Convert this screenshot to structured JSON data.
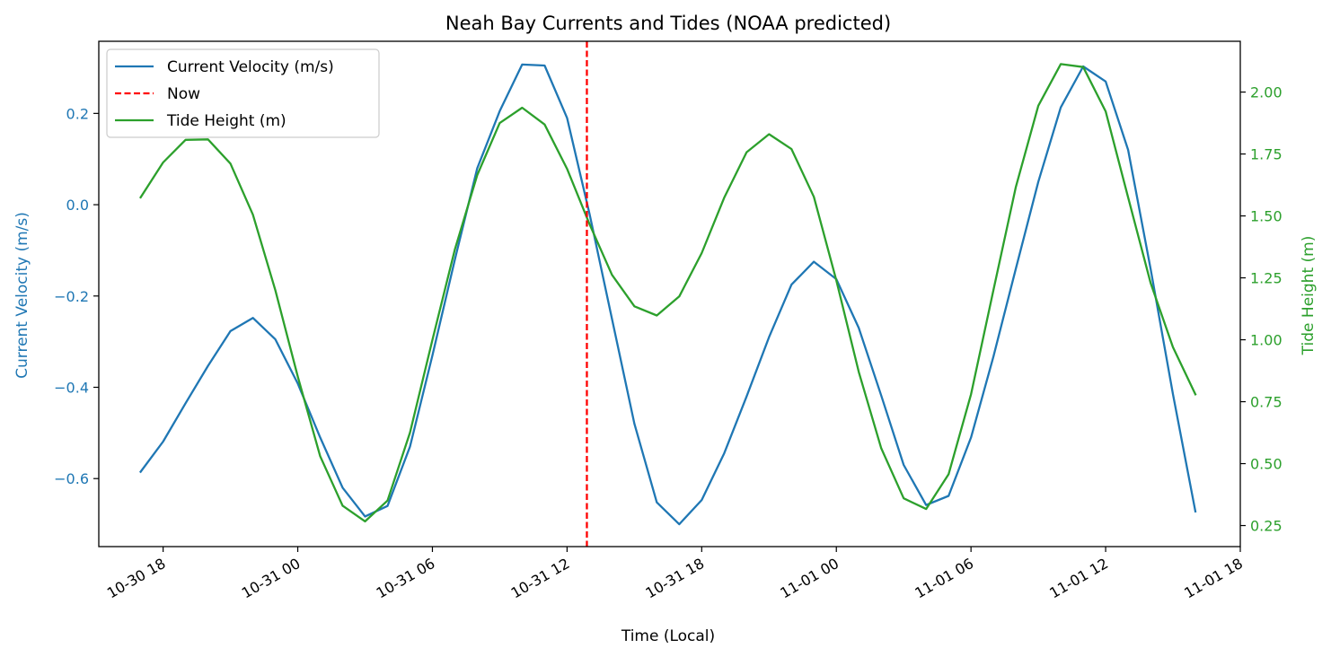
{
  "chart_data": {
    "type": "line",
    "title": "Neah Bay Currents and Tides (NOAA predicted)",
    "xlabel": "Time (Local)",
    "ylabel_left": "Current Velocity (m/s)",
    "ylabel_right": "Tide Height (m)",
    "x_unit": "hours",
    "x_ticks": [
      {
        "t": "2024-10-30T18:00",
        "label": "10-30 18"
      },
      {
        "t": "2024-10-31T00:00",
        "label": "10-31 00"
      },
      {
        "t": "2024-10-31T06:00",
        "label": "10-31 06"
      },
      {
        "t": "2024-10-31T12:00",
        "label": "10-31 12"
      },
      {
        "t": "2024-10-31T18:00",
        "label": "10-31 18"
      },
      {
        "t": "2024-11-01T00:00",
        "label": "11-01 00"
      },
      {
        "t": "2024-11-01T06:00",
        "label": "11-01 06"
      },
      {
        "t": "2024-11-01T12:00",
        "label": "11-01 12"
      },
      {
        "t": "2024-11-01T18:00",
        "label": "11-01 18"
      }
    ],
    "xlim": [
      "2024-10-30T15:08",
      "2024-11-01T18:00"
    ],
    "ylim_left": [
      -0.749,
      0.358
    ],
    "yticks_left": [
      {
        "v": -0.6,
        "label": "−0.6"
      },
      {
        "v": -0.4,
        "label": "−0.4"
      },
      {
        "v": -0.2,
        "label": "−0.2"
      },
      {
        "v": 0.0,
        "label": "0.0"
      },
      {
        "v": 0.2,
        "label": "0.2"
      }
    ],
    "ylim_right": [
      0.165,
      2.205
    ],
    "yticks_right": [
      {
        "v": 0.25,
        "label": "0.25"
      },
      {
        "v": 0.5,
        "label": "0.50"
      },
      {
        "v": 0.75,
        "label": "0.75"
      },
      {
        "v": 1.0,
        "label": "1.00"
      },
      {
        "v": 1.25,
        "label": "1.25"
      },
      {
        "v": 1.5,
        "label": "1.50"
      },
      {
        "v": 1.75,
        "label": "1.75"
      },
      {
        "v": 2.0,
        "label": "2.00"
      }
    ],
    "legend_position": "top-left",
    "series": [
      {
        "name": "Current Velocity (m/s)",
        "axis": "left",
        "color": "#1f77b4",
        "x": [
          "2024-10-30T17:00",
          "2024-10-30T18:00",
          "2024-10-30T19:00",
          "2024-10-30T20:00",
          "2024-10-30T21:00",
          "2024-10-30T22:00",
          "2024-10-30T23:00",
          "2024-10-31T00:00",
          "2024-10-31T01:00",
          "2024-10-31T02:00",
          "2024-10-31T03:00",
          "2024-10-31T04:00",
          "2024-10-31T05:00",
          "2024-10-31T06:00",
          "2024-10-31T07:00",
          "2024-10-31T08:00",
          "2024-10-31T09:00",
          "2024-10-31T10:00",
          "2024-10-31T11:00",
          "2024-10-31T12:00",
          "2024-10-31T13:00",
          "2024-10-31T14:00",
          "2024-10-31T15:00",
          "2024-10-31T16:00",
          "2024-10-31T17:00",
          "2024-10-31T18:00",
          "2024-10-31T19:00",
          "2024-10-31T20:00",
          "2024-10-31T21:00",
          "2024-10-31T22:00",
          "2024-10-31T23:00",
          "2024-11-01T00:00",
          "2024-11-01T01:00",
          "2024-11-01T02:00",
          "2024-11-01T03:00",
          "2024-11-01T04:00",
          "2024-11-01T05:00",
          "2024-11-01T06:00",
          "2024-11-01T07:00",
          "2024-11-01T08:00",
          "2024-11-01T09:00",
          "2024-11-01T10:00",
          "2024-11-01T11:00",
          "2024-11-01T12:00",
          "2024-11-01T13:00",
          "2024-11-01T14:00",
          "2024-11-01T15:00",
          "2024-11-01T16:00"
        ],
        "values": [
          -0.585,
          -0.519,
          -0.435,
          -0.353,
          -0.277,
          -0.248,
          -0.295,
          -0.392,
          -0.51,
          -0.62,
          -0.683,
          -0.66,
          -0.53,
          -0.33,
          -0.12,
          0.08,
          0.205,
          0.307,
          0.305,
          0.19,
          -0.02,
          -0.25,
          -0.48,
          -0.652,
          -0.7,
          -0.647,
          -0.545,
          -0.42,
          -0.29,
          -0.175,
          -0.125,
          -0.163,
          -0.27,
          -0.418,
          -0.57,
          -0.658,
          -0.638,
          -0.51,
          -0.333,
          -0.14,
          0.05,
          0.213,
          0.303,
          0.27,
          0.12,
          -0.14,
          -0.415,
          -0.672
        ]
      },
      {
        "name": "Tide Height (m)",
        "axis": "right",
        "color": "#2ca02c",
        "x": [
          "2024-10-30T17:00",
          "2024-10-30T18:00",
          "2024-10-30T19:00",
          "2024-10-30T20:00",
          "2024-10-30T21:00",
          "2024-10-30T22:00",
          "2024-10-30T23:00",
          "2024-10-31T00:00",
          "2024-10-31T01:00",
          "2024-10-31T02:00",
          "2024-10-31T03:00",
          "2024-10-31T04:00",
          "2024-10-31T05:00",
          "2024-10-31T06:00",
          "2024-10-31T07:00",
          "2024-10-31T08:00",
          "2024-10-31T09:00",
          "2024-10-31T10:00",
          "2024-10-31T11:00",
          "2024-10-31T12:00",
          "2024-10-31T13:00",
          "2024-10-31T14:00",
          "2024-10-31T15:00",
          "2024-10-31T16:00",
          "2024-10-31T17:00",
          "2024-10-31T18:00",
          "2024-10-31T19:00",
          "2024-10-31T20:00",
          "2024-10-31T21:00",
          "2024-10-31T22:00",
          "2024-10-31T23:00",
          "2024-11-01T00:00",
          "2024-11-01T01:00",
          "2024-11-01T02:00",
          "2024-11-01T03:00",
          "2024-11-01T04:00",
          "2024-11-01T05:00",
          "2024-11-01T06:00",
          "2024-11-01T07:00",
          "2024-11-01T08:00",
          "2024-11-01T09:00",
          "2024-11-01T10:00",
          "2024-11-01T11:00",
          "2024-11-01T12:00",
          "2024-11-01T13:00",
          "2024-11-01T14:00",
          "2024-11-01T15:00",
          "2024-11-01T16:00"
        ],
        "values": [
          1.575,
          1.716,
          1.807,
          1.809,
          1.711,
          1.505,
          1.2,
          0.851,
          0.53,
          0.33,
          0.267,
          0.351,
          0.625,
          1.0,
          1.365,
          1.665,
          1.875,
          1.937,
          1.869,
          1.69,
          1.467,
          1.262,
          1.135,
          1.098,
          1.175,
          1.35,
          1.573,
          1.757,
          1.83,
          1.77,
          1.577,
          1.24,
          0.87,
          0.562,
          0.36,
          0.317,
          0.457,
          0.78,
          1.2,
          1.617,
          1.945,
          2.113,
          2.101,
          1.922,
          1.575,
          1.23,
          0.97,
          0.78
        ]
      }
    ],
    "annotation": {
      "name": "Now",
      "t": "2024-10-31T12:53",
      "color": "#ff0000",
      "style": "dashed"
    }
  }
}
